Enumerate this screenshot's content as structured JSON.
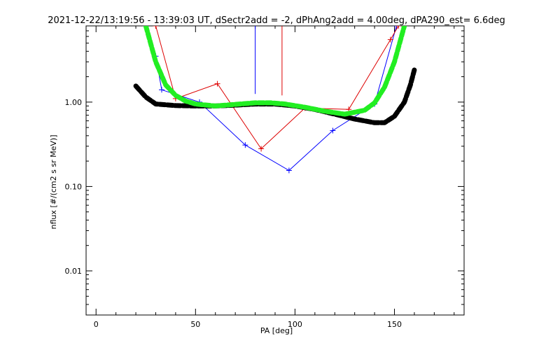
{
  "chart_data": {
    "type": "line",
    "title": "2021-12-22/13:19:56 - 13:39:03 UT, dSectr2add = -2, dPhAng2add = 4.00deg, dPA290_est=   6.6deg",
    "xlabel": "PA [deg]",
    "ylabel": "nflux [#/(cm2 s sr MeV)]",
    "x_ticks": [
      "0",
      "50",
      "100",
      "150"
    ],
    "y_ticks": [
      "0.01",
      "0.10",
      "1.00"
    ],
    "xlim": [
      -5,
      185
    ],
    "ylim": [
      0.003,
      8
    ],
    "yscale": "log",
    "series": [
      {
        "color": "#0000ff",
        "style": "line-plus",
        "points": [
          [
            30,
            3.5
          ],
          [
            33,
            1.4
          ],
          [
            52,
            1.0
          ],
          [
            75,
            0.31
          ],
          [
            97,
            0.155
          ],
          [
            119,
            0.46
          ],
          [
            140,
            0.95
          ],
          [
            151,
            8
          ]
        ]
      },
      {
        "color": "#dd0000",
        "style": "line-plus",
        "points": [
          [
            30,
            8
          ],
          [
            40,
            1.1
          ],
          [
            61,
            1.65
          ],
          [
            83,
            0.28
          ],
          [
            105,
            0.85
          ],
          [
            127,
            0.82
          ],
          [
            148,
            5.5
          ],
          [
            152,
            8
          ]
        ]
      },
      {
        "color": "#000000",
        "style": "thick-dashed",
        "points": [
          [
            20,
            1.55
          ],
          [
            25,
            1.15
          ],
          [
            30,
            0.95
          ],
          [
            40,
            0.91
          ],
          [
            50,
            0.9
          ],
          [
            60,
            0.9
          ],
          [
            70,
            0.92
          ],
          [
            80,
            0.95
          ],
          [
            90,
            0.95
          ],
          [
            100,
            0.9
          ],
          [
            110,
            0.82
          ],
          [
            120,
            0.72
          ],
          [
            130,
            0.63
          ],
          [
            140,
            0.57
          ],
          [
            145,
            0.57
          ],
          [
            150,
            0.68
          ],
          [
            155,
            1.0
          ],
          [
            158,
            1.6
          ],
          [
            160,
            2.4
          ]
        ]
      },
      {
        "color": "#22ee22",
        "style": "thick-dashed",
        "points": [
          [
            25,
            8
          ],
          [
            30,
            3.0
          ],
          [
            35,
            1.6
          ],
          [
            40,
            1.2
          ],
          [
            45,
            1.03
          ],
          [
            50,
            0.95
          ],
          [
            60,
            0.9
          ],
          [
            70,
            0.94
          ],
          [
            80,
            0.98
          ],
          [
            88,
            0.98
          ],
          [
            95,
            0.95
          ],
          [
            105,
            0.87
          ],
          [
            115,
            0.78
          ],
          [
            125,
            0.72
          ],
          [
            135,
            0.8
          ],
          [
            140,
            0.98
          ],
          [
            145,
            1.5
          ],
          [
            150,
            3.0
          ],
          [
            155,
            8
          ]
        ]
      },
      {
        "color": "#0000ff",
        "style": "line",
        "points": [
          [
            80,
            8
          ],
          [
            80,
            1.25
          ]
        ]
      },
      {
        "color": "#dd0000",
        "style": "line",
        "points": [
          [
            93.5,
            8
          ],
          [
            93.5,
            1.2
          ]
        ]
      }
    ]
  }
}
